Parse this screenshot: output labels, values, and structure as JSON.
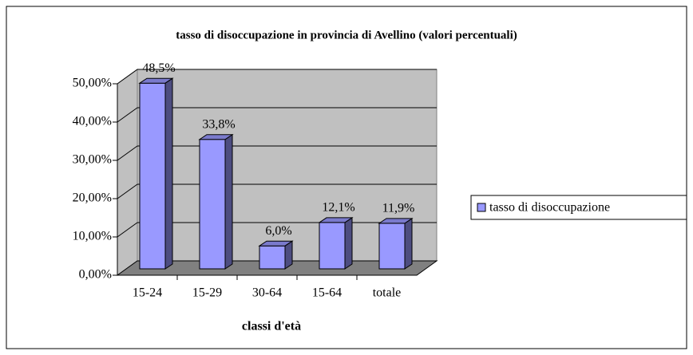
{
  "chart_data": {
    "type": "bar",
    "title": "tasso di disoccupazione in provincia di Avellino (valori percentuali)",
    "x_label": "classi d'età",
    "categories": [
      "15-24",
      "15-29",
      "30-64",
      "15-64",
      "totale"
    ],
    "series": [
      {
        "name": "tasso di disoccupazione",
        "color": "#9999ff",
        "values": [
          48.5,
          33.8,
          6.0,
          12.1,
          11.9
        ],
        "value_labels": [
          "48,5%",
          "33,8%",
          "6,0%",
          "12,1%",
          "11,9%"
        ]
      }
    ],
    "ylim": [
      0,
      50
    ],
    "yticks": [
      {
        "value": 0,
        "label": "0,00%"
      },
      {
        "value": 10,
        "label": "10,00%"
      },
      {
        "value": 20,
        "label": "20,00%"
      },
      {
        "value": 30,
        "label": "30,00%"
      },
      {
        "value": 40,
        "label": "40,00%"
      },
      {
        "value": 50,
        "label": "50,00%"
      }
    ],
    "grid": true,
    "legend": "right"
  }
}
